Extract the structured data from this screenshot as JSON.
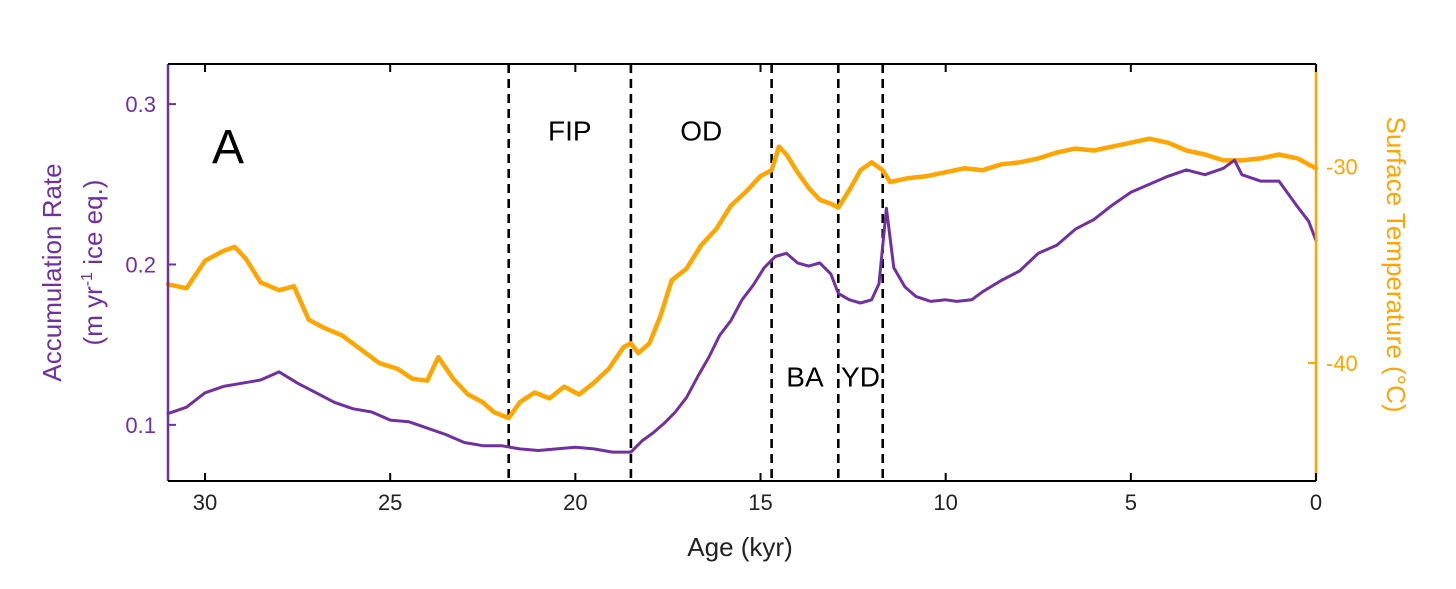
{
  "chart_data": {
    "type": "line",
    "panel_label": "A",
    "xlabel": "Age (kyr)",
    "xlim": [
      31,
      0
    ],
    "x_ticks": [
      30,
      25,
      20,
      15,
      10,
      5,
      0
    ],
    "y_left": {
      "label_line1": "Accumulation Rate",
      "label_line2_prefix": "(m yr",
      "label_line2_sup": "-1",
      "label_line2_suffix": " ice eq.)",
      "lim": [
        0.065,
        0.325
      ],
      "ticks": [
        0.1,
        0.2,
        0.3
      ],
      "tick_labels": [
        "0.1",
        "0.2",
        "0.3"
      ],
      "color": "#7030a0"
    },
    "y_right": {
      "label": "Surface Temperature (°C)",
      "lim": [
        -46,
        -24.8
      ],
      "ticks": [
        -40,
        -30
      ],
      "tick_labels": [
        "-40",
        "-30"
      ],
      "color": "#ffa500"
    },
    "event_boundaries": [
      21.8,
      18.5,
      14.7,
      12.9,
      11.7
    ],
    "annotations": [
      {
        "text": "FIP",
        "x": 20.15,
        "y_temp": -28.7
      },
      {
        "text": "OD",
        "x": 16.6,
        "y_temp": -28.7
      },
      {
        "text": "BA",
        "x": 13.8,
        "y_temp": -41.2
      },
      {
        "text": "YD",
        "x": 12.3,
        "y_temp": -41.2
      }
    ],
    "series": [
      {
        "axis": "right",
        "color": "#ffa500",
        "x": [
          31.0,
          30.5,
          30.0,
          29.5,
          29.2,
          28.9,
          28.5,
          28.0,
          27.6,
          27.2,
          26.8,
          26.3,
          25.8,
          25.3,
          24.8,
          24.4,
          24.0,
          23.7,
          23.3,
          22.9,
          22.5,
          22.2,
          21.8,
          21.5,
          21.1,
          20.7,
          20.3,
          19.9,
          19.5,
          19.1,
          18.7,
          18.5,
          18.3,
          18.0,
          17.7,
          17.4,
          17.0,
          16.6,
          16.2,
          15.8,
          15.4,
          15.0,
          14.7,
          14.5,
          14.3,
          14.0,
          13.7,
          13.4,
          13.1,
          12.9,
          12.6,
          12.3,
          12.0,
          11.7,
          11.5,
          11.0,
          10.5,
          10.0,
          9.5,
          9.0,
          8.5,
          8.0,
          7.5,
          7.0,
          6.5,
          6.0,
          5.5,
          5.0,
          4.5,
          4.0,
          3.5,
          3.0,
          2.5,
          2.0,
          1.5,
          1.0,
          0.5,
          0.0
        ],
        "values": [
          -36.0,
          -36.2,
          -34.8,
          -34.3,
          -34.1,
          -34.7,
          -35.9,
          -36.3,
          -36.1,
          -37.8,
          -38.2,
          -38.6,
          -39.3,
          -40.0,
          -40.3,
          -40.8,
          -40.9,
          -39.7,
          -40.8,
          -41.6,
          -42.0,
          -42.5,
          -42.8,
          -42.0,
          -41.5,
          -41.8,
          -41.2,
          -41.6,
          -41.0,
          -40.3,
          -39.2,
          -39.0,
          -39.5,
          -39.0,
          -37.6,
          -35.8,
          -35.2,
          -34.0,
          -33.2,
          -32.0,
          -31.3,
          -30.5,
          -30.2,
          -29.0,
          -29.4,
          -30.3,
          -31.1,
          -31.7,
          -31.9,
          -32.1,
          -31.2,
          -30.2,
          -29.8,
          -30.2,
          -30.8,
          -30.6,
          -30.5,
          -30.3,
          -30.1,
          -30.2,
          -29.9,
          -29.8,
          -29.6,
          -29.3,
          -29.1,
          -29.2,
          -29.0,
          -28.8,
          -28.6,
          -28.8,
          -29.2,
          -29.4,
          -29.7,
          -29.7,
          -29.6,
          -29.4,
          -29.6,
          -30.1
        ]
      },
      {
        "axis": "left",
        "color": "#7030a0",
        "x": [
          31.0,
          30.5,
          30.0,
          29.5,
          29.0,
          28.5,
          28.0,
          27.5,
          27.0,
          26.5,
          26.0,
          25.5,
          25.0,
          24.5,
          24.0,
          23.5,
          23.0,
          22.5,
          22.0,
          21.5,
          21.0,
          20.5,
          20.0,
          19.5,
          19.0,
          18.5,
          18.2,
          17.9,
          17.6,
          17.3,
          17.0,
          16.7,
          16.4,
          16.1,
          15.8,
          15.5,
          15.2,
          14.9,
          14.6,
          14.3,
          14.0,
          13.7,
          13.4,
          13.1,
          12.9,
          12.6,
          12.3,
          12.0,
          11.8,
          11.6,
          11.4,
          11.1,
          10.8,
          10.4,
          10.0,
          9.7,
          9.3,
          9.0,
          8.5,
          8.0,
          7.5,
          7.0,
          6.5,
          6.0,
          5.5,
          5.0,
          4.5,
          4.0,
          3.5,
          3.0,
          2.5,
          2.2,
          2.0,
          1.5,
          1.0,
          0.5,
          0.2,
          0.0
        ],
        "values": [
          0.107,
          0.111,
          0.12,
          0.124,
          0.126,
          0.128,
          0.133,
          0.126,
          0.12,
          0.114,
          0.11,
          0.108,
          0.103,
          0.102,
          0.098,
          0.094,
          0.089,
          0.087,
          0.087,
          0.085,
          0.084,
          0.085,
          0.086,
          0.085,
          0.083,
          0.083,
          0.09,
          0.095,
          0.101,
          0.108,
          0.117,
          0.13,
          0.142,
          0.156,
          0.165,
          0.178,
          0.187,
          0.198,
          0.205,
          0.207,
          0.201,
          0.199,
          0.201,
          0.194,
          0.182,
          0.178,
          0.176,
          0.178,
          0.188,
          0.235,
          0.198,
          0.186,
          0.18,
          0.177,
          0.178,
          0.177,
          0.178,
          0.183,
          0.19,
          0.196,
          0.207,
          0.212,
          0.222,
          0.228,
          0.237,
          0.245,
          0.25,
          0.255,
          0.259,
          0.256,
          0.26,
          0.265,
          0.256,
          0.252,
          0.252,
          0.236,
          0.227,
          0.215
        ]
      }
    ]
  }
}
